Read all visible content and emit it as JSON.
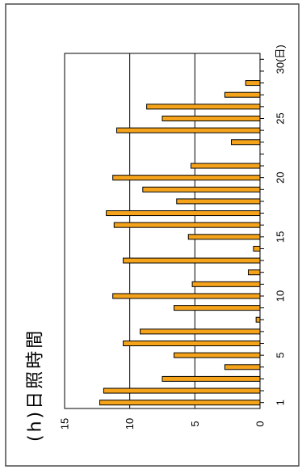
{
  "chart_data": {
    "type": "bar",
    "ylabel": "(h)日照時間",
    "x": [
      1,
      2,
      3,
      4,
      5,
      6,
      7,
      8,
      9,
      10,
      11,
      12,
      13,
      14,
      15,
      16,
      17,
      18,
      19,
      20,
      21,
      22,
      23,
      24,
      25,
      26,
      27,
      28,
      29,
      30
    ],
    "values": [
      12.3,
      12.0,
      7.5,
      2.7,
      6.6,
      10.5,
      9.2,
      0.3,
      6.6,
      11.3,
      5.2,
      0.9,
      10.5,
      0.5,
      5.5,
      11.2,
      11.8,
      6.4,
      9.0,
      11.3,
      5.3,
      0,
      2.2,
      11.0,
      7.5,
      8.7,
      2.7,
      1.1,
      0,
      0
    ],
    "ylim": [
      0,
      15
    ],
    "yticks": [
      {
        "value": 0,
        "label": "0"
      },
      {
        "value": 5,
        "label": "5"
      },
      {
        "value": 10,
        "label": "10"
      },
      {
        "value": 15,
        "label": "15"
      }
    ],
    "xticks": [
      {
        "value": 1,
        "label": "1"
      },
      {
        "value": 5,
        "label": "5"
      },
      {
        "value": 10,
        "label": "10"
      },
      {
        "value": 15,
        "label": "15"
      },
      {
        "value": 20,
        "label": "20"
      },
      {
        "value": 25,
        "label": "25"
      },
      {
        "value": 30,
        "label": "30(日)"
      }
    ],
    "grid": true,
    "colors": {
      "bar_fill": "#F4A31A",
      "bar_outline": "#000000",
      "grid": "#000000"
    }
  }
}
